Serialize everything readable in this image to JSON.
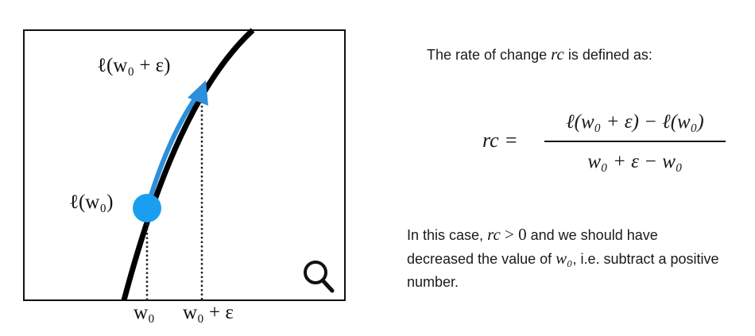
{
  "plot": {
    "label_loss_w0_eps": "ℓ(w₀ + ε)",
    "label_loss_w0": "ℓ(w₀)",
    "tick_w0": "w₀",
    "tick_w0_eps": "w₀ + ε",
    "colors": {
      "curve": "#000000",
      "point": "#1a9ff0",
      "arrow": "#2b8fdc",
      "frame": "#111111"
    },
    "icons": [
      "magnifier-icon"
    ]
  },
  "text": {
    "intro_prefix": "The rate of change ",
    "intro_var": "rc",
    "intro_suffix": " is defined as:",
    "formula_lhs": "rc =",
    "formula_numerator": "ℓ(w₀ + ε) − ℓ(w₀)",
    "formula_denominator": "w₀ + ε − w₀",
    "conclusion_p1": "In this case, ",
    "conclusion_math1": "rc",
    "conclusion_op": " > 0",
    "conclusion_p2": " and we should have decreased the value of ",
    "conclusion_math2": "w₀",
    "conclusion_p3": ", i.e. subtract a positive number."
  }
}
